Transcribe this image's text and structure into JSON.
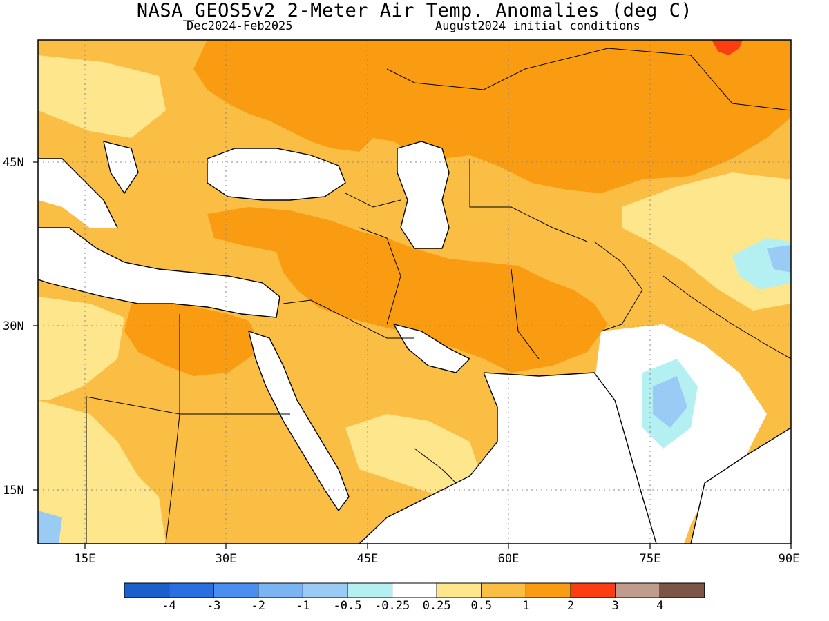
{
  "title": "NASA_GEOS5v2 2-Meter Air Temp. Anomalies (deg C)",
  "period": "Dec2024-Feb2025",
  "init": "August2024 initial conditions",
  "lat_labels": [
    "45N",
    "30N",
    "15N"
  ],
  "lon_labels": [
    "15E",
    "30E",
    "45E",
    "60E",
    "75E",
    "90E"
  ],
  "colorbar": {
    "colors": [
      "#1a5fcc",
      "#2a6fe0",
      "#4a8fef",
      "#7ab4f2",
      "#9acbf5",
      "#b4f0f2",
      "#ffffff",
      "#fde68c",
      "#fbbe45",
      "#f99c11",
      "#fb3e12",
      "#c09c8c",
      "#7c5448"
    ],
    "labels": [
      "-4",
      "-3",
      "-2",
      "-1",
      "-0.5",
      "-0.25",
      "0.25",
      "0.5",
      "1",
      "2",
      "3",
      "4"
    ]
  },
  "map": {
    "ocean_color": "#ffffff",
    "gridline_style": "dotted",
    "lon_range": [
      10,
      90
    ],
    "lat_range": [
      10,
      55
    ]
  }
}
